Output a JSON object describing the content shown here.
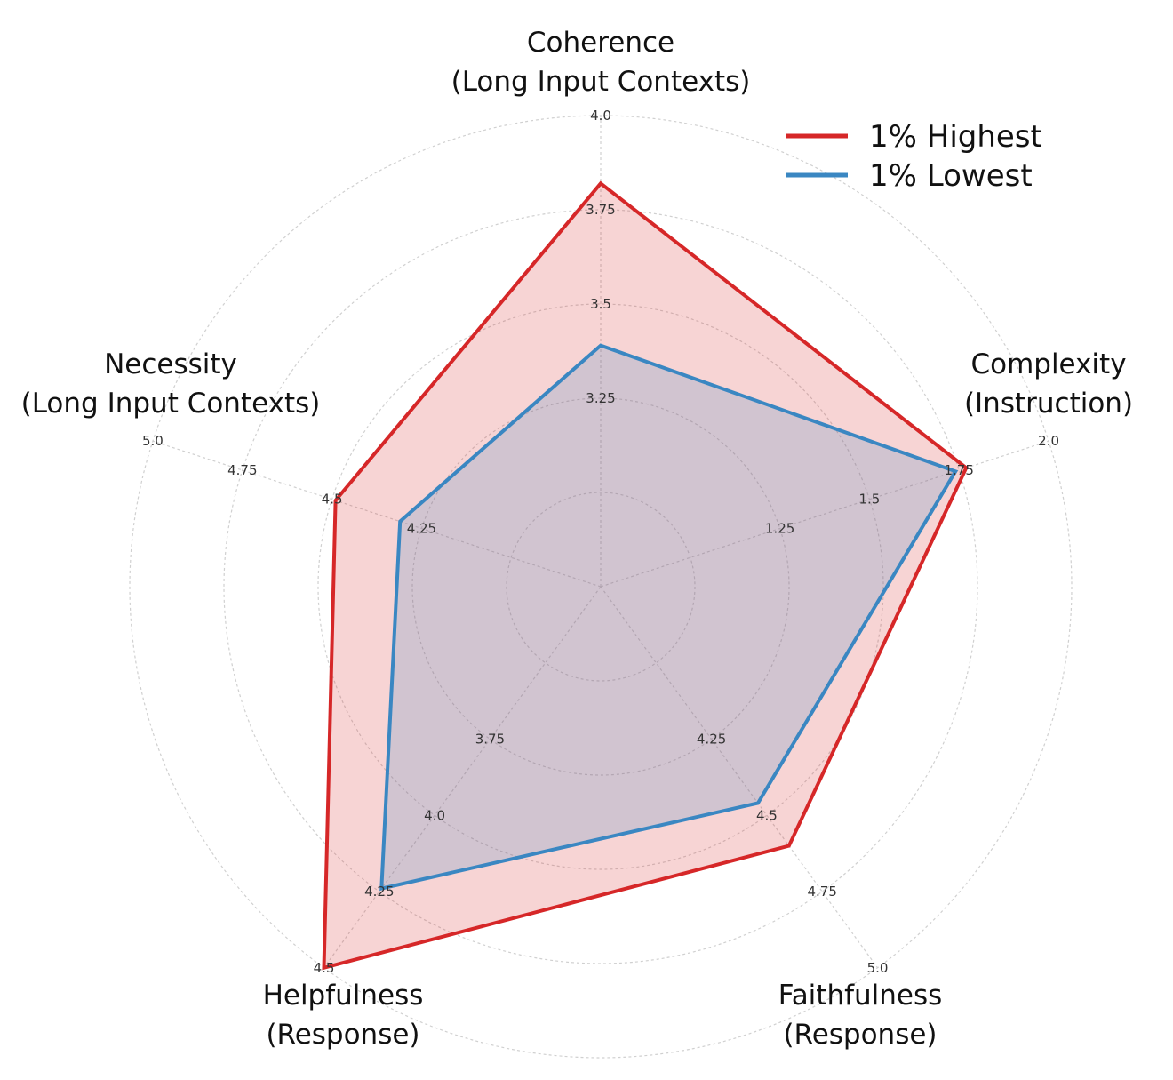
{
  "chart_data": {
    "type": "radar",
    "axes": [
      {
        "title": [
          "Coherence",
          "(Long Input Contexts)"
        ],
        "min": 3.0,
        "max": 4.0,
        "ticks": [
          "3.25",
          "3.5",
          "3.75",
          "4.0"
        ]
      },
      {
        "title": [
          "Complexity",
          "(Instruction)"
        ],
        "min": 1.0,
        "max": 2.0,
        "ticks": [
          "1.25",
          "1.5",
          "1.75",
          "2.0"
        ]
      },
      {
        "title": [
          "Faithfulness",
          "(Response)"
        ],
        "min": 4.0,
        "max": 5.0,
        "ticks": [
          "4.25",
          "4.5",
          "4.75",
          "5.0"
        ]
      },
      {
        "title": [
          "Helpfulness",
          "(Response)"
        ],
        "min": 3.5,
        "max": 4.5,
        "ticks": [
          "3.75",
          "4.0",
          "4.25",
          "4.5"
        ]
      },
      {
        "title": [
          "Necessity",
          "(Long Input Contexts)"
        ],
        "min": 4.0,
        "max": 5.0,
        "ticks": [
          "4.25",
          "4.5",
          "4.75",
          "5.0"
        ]
      }
    ],
    "series": [
      {
        "name": "1% Highest",
        "color": "#d62728",
        "fill": "rgba(214,39,40,0.2)",
        "values": [
          3.82,
          1.77,
          4.6,
          4.5,
          4.49
        ]
      },
      {
        "name": "1% Lowest",
        "color": "#3a87c2",
        "fill": "rgba(58,135,194,0.2)",
        "values": [
          3.39,
          1.74,
          4.46,
          4.24,
          4.31
        ]
      }
    ],
    "legend_position": "top-right",
    "grid": true
  }
}
